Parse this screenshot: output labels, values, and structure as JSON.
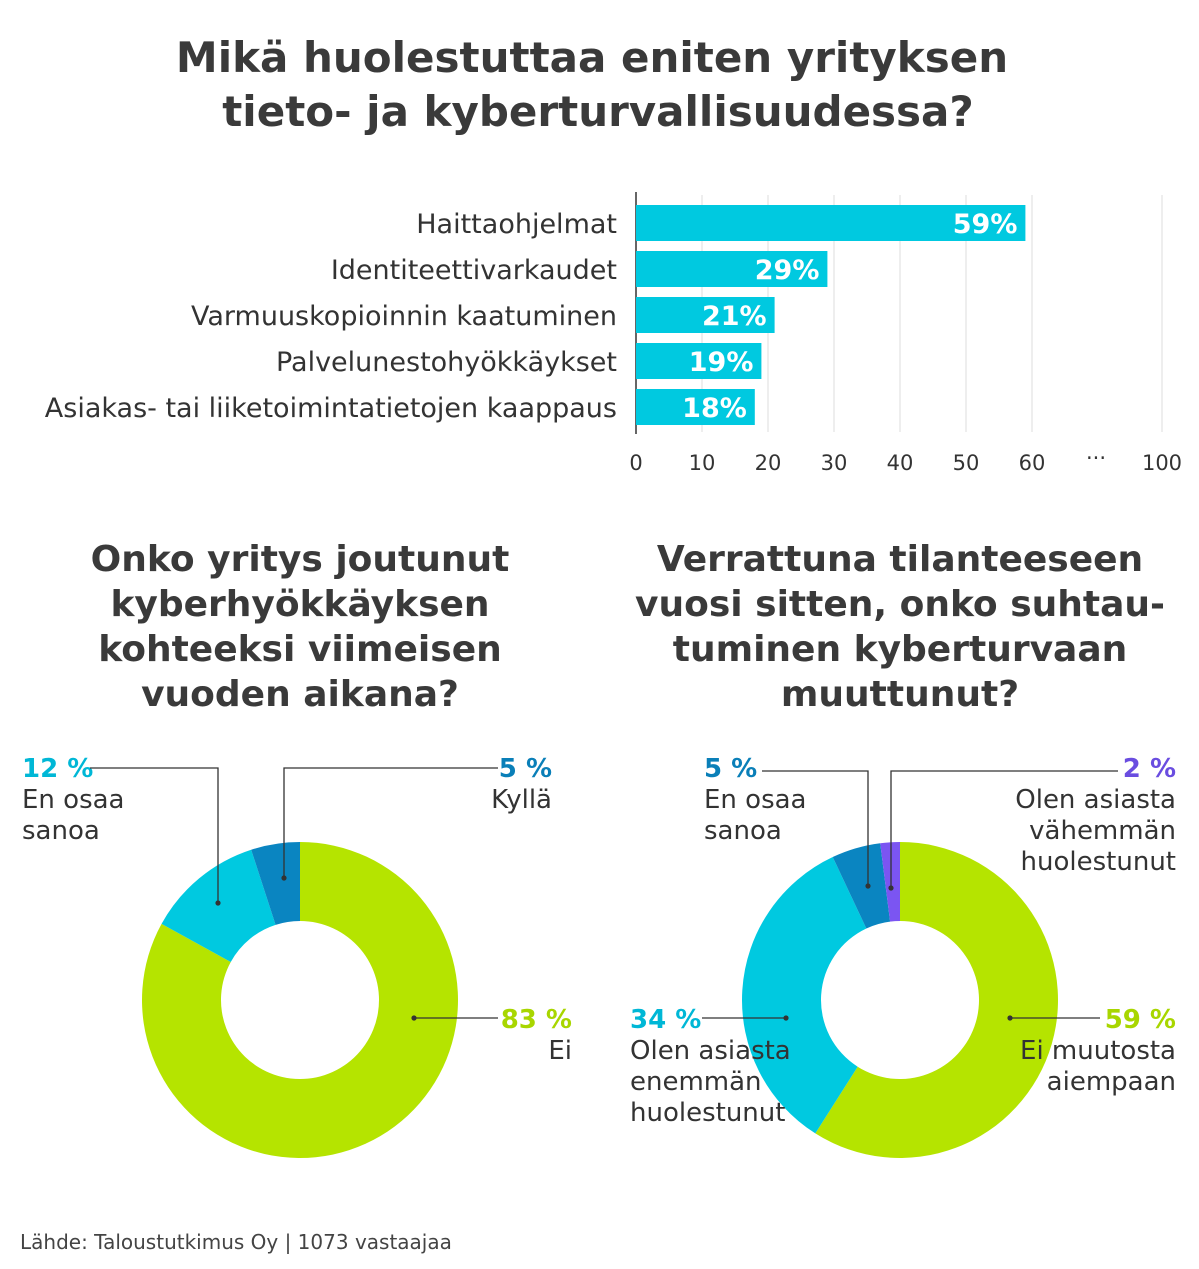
{
  "source": "Lähde: Taloustutkimus Oy | 1073 vastaajaa",
  "colors": {
    "bar": "#00c9e0",
    "green": "#b5e400",
    "cyan": "#00c9e0",
    "blue": "#0a85c1",
    "purple": "#7b55f2",
    "pct_cyan": "#00b7d6",
    "pct_blue": "#0a7fb8",
    "pct_green": "#a8d600",
    "pct_purple": "#6a4de0"
  },
  "chart_data": [
    {
      "type": "bar",
      "orientation": "horizontal",
      "title_lines": [
        "Mikä huolestuttaa eniten yrityksen",
        "tieto- ja kyberturvallisuudessa?"
      ],
      "categories": [
        "Haittaohjelmat",
        "Identiteettivarkaudet",
        "Varmuuskopioinnin kaatuminen",
        "Palvelunestohyökkäykset",
        "Asiakas- tai liiketoimintatietojen kaappaus"
      ],
      "values": [
        59,
        29,
        21,
        19,
        18
      ],
      "value_labels": [
        "59%",
        "29%",
        "21%",
        "19%",
        "18%"
      ],
      "xlim": [
        0,
        100
      ],
      "xticks": [
        0,
        10,
        20,
        30,
        40,
        50,
        60,
        100
      ],
      "xtick_labels": [
        "0",
        "10",
        "20",
        "30",
        "40",
        "50",
        "60",
        "100"
      ],
      "axis_break_label": "···",
      "grid": true
    },
    {
      "type": "pie",
      "variant": "donut",
      "title_lines": [
        "Onko yritys joutunut",
        "kyberhyökkäyksen",
        "kohteeksi viimeisen",
        "vuoden aikana?"
      ],
      "slices": [
        {
          "pct_label": "83 %",
          "label_lines": [
            "Ei"
          ],
          "value": 83,
          "color": "green",
          "pct_color": "pct_green"
        },
        {
          "pct_label": "12 %",
          "label_lines": [
            "En osaa",
            "sanoa"
          ],
          "value": 12,
          "color": "cyan",
          "pct_color": "pct_cyan"
        },
        {
          "pct_label": "5 %",
          "label_lines": [
            "Kyllä"
          ],
          "value": 5,
          "color": "blue",
          "pct_color": "pct_blue"
        }
      ]
    },
    {
      "type": "pie",
      "variant": "donut",
      "title_lines": [
        "Verrattuna tilanteeseen",
        "vuosi sitten, onko suhtau-",
        "tuminen kyberturvaan",
        "muuttunut?"
      ],
      "slices": [
        {
          "pct_label": "59 %",
          "label_lines": [
            "Ei muutosta",
            "aiempaan"
          ],
          "value": 59,
          "color": "green",
          "pct_color": "pct_green"
        },
        {
          "pct_label": "34 %",
          "label_lines": [
            "Olen asiasta",
            "enemmän",
            "huolestunut"
          ],
          "value": 34,
          "color": "cyan",
          "pct_color": "pct_cyan"
        },
        {
          "pct_label": "5 %",
          "label_lines": [
            "En osaa",
            "sanoa"
          ],
          "value": 5,
          "color": "blue",
          "pct_color": "pct_blue"
        },
        {
          "pct_label": "2 %",
          "label_lines": [
            "Olen asiasta",
            "vähemmän",
            "huolestunut"
          ],
          "value": 2,
          "color": "purple",
          "pct_color": "pct_purple"
        }
      ]
    }
  ]
}
